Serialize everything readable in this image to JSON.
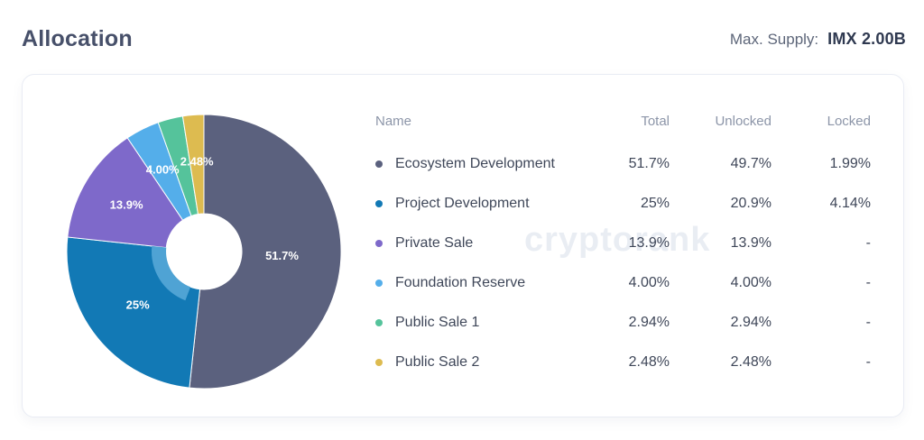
{
  "header": {
    "title": "Allocation",
    "max_supply_label": "Max. Supply:",
    "max_supply_value": "IMX 2.00B"
  },
  "watermark": {
    "text": "cryptorank"
  },
  "table": {
    "columns": [
      "Name",
      "Total",
      "Unlocked",
      "Locked"
    ]
  },
  "chart_data": {
    "type": "pie",
    "donut": true,
    "start_angle_deg": 0,
    "direction": "clockwise",
    "title": "Allocation",
    "items": [
      {
        "name": "Ecosystem Development",
        "value": 51.7,
        "total": "51.7%",
        "unlocked": "49.7%",
        "locked": "1.99%",
        "color": "#5b617e",
        "pie_label": "51.7%"
      },
      {
        "name": "Project Development",
        "value": 25,
        "total": "25%",
        "unlocked": "20.9%",
        "locked": "4.14%",
        "color": "#1279b5",
        "pie_label": "25%"
      },
      {
        "name": "Private Sale",
        "value": 13.9,
        "total": "13.9%",
        "unlocked": "13.9%",
        "locked": "-",
        "color": "#7e69ca",
        "pie_label": "13.9%"
      },
      {
        "name": "Foundation Reserve",
        "value": 4.0,
        "total": "4.00%",
        "unlocked": "4.00%",
        "locked": "-",
        "color": "#54aeea",
        "pie_label": "4.00%"
      },
      {
        "name": "Public Sale 1",
        "value": 2.94,
        "total": "2.94%",
        "unlocked": "2.94%",
        "locked": "-",
        "color": "#55c39b",
        "pie_label": ""
      },
      {
        "name": "Public Sale 2",
        "value": 2.48,
        "total": "2.48%",
        "unlocked": "2.48%",
        "locked": "-",
        "color": "#ddbb50",
        "pie_label": "2.48%"
      }
    ],
    "unlocked_inner_arc": {
      "slice_index": 1,
      "unlocked_value": 20.9,
      "color": "#4fa3d4"
    }
  }
}
